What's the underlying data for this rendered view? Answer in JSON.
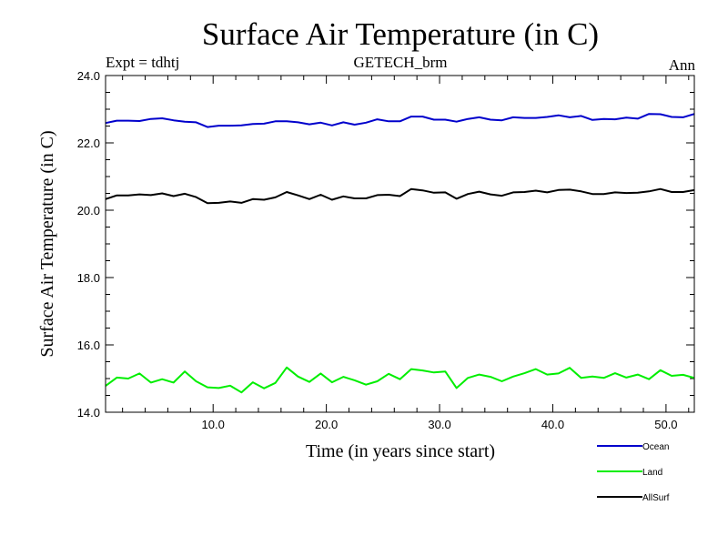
{
  "chart_data": {
    "type": "line",
    "title": "Surface Air Temperature (in C)",
    "subtitle_left": "Expt = tdhtj",
    "subtitle_center": "GETECH_brm",
    "subtitle_right": "Ann",
    "xlabel": "Time (in years since start)",
    "ylabel": "Surface Air Temperature (in C)",
    "xlim": [
      0.5,
      52.5
    ],
    "ylim": [
      14.0,
      24.0
    ],
    "x_ticks": [
      10,
      20,
      30,
      40,
      50
    ],
    "x_tick_labels": [
      "10.0",
      "20.0",
      "30.0",
      "40.0",
      "50.0"
    ],
    "y_ticks": [
      14,
      16,
      18,
      20,
      22,
      24
    ],
    "y_tick_labels": [
      "14.0",
      "16.0",
      "18.0",
      "20.0",
      "22.0",
      "24.0"
    ],
    "x": [
      0.5,
      1.5,
      2.5,
      3.5,
      4.5,
      5.5,
      6.5,
      7.5,
      8.5,
      9.5,
      10.5,
      11.5,
      12.5,
      13.5,
      14.5,
      15.5,
      16.5,
      17.5,
      18.5,
      19.5,
      20.5,
      21.5,
      22.5,
      23.5,
      24.5,
      25.5,
      26.5,
      27.5,
      28.5,
      29.5,
      30.5,
      31.5,
      32.5,
      33.5,
      34.5,
      35.5,
      36.5,
      37.5,
      38.5,
      39.5,
      40.5,
      41.5,
      42.5,
      43.5,
      44.5,
      45.5,
      46.5,
      47.5,
      48.5,
      49.5,
      50.5,
      51.5,
      52.5
    ],
    "series": [
      {
        "name": "Ocean",
        "color": "#0000cc",
        "values": [
          22.59,
          22.66,
          22.66,
          22.65,
          22.71,
          22.73,
          22.67,
          22.63,
          22.61,
          22.47,
          22.51,
          22.51,
          22.52,
          22.56,
          22.57,
          22.64,
          22.64,
          22.61,
          22.55,
          22.6,
          22.52,
          22.61,
          22.54,
          22.6,
          22.7,
          22.64,
          22.64,
          22.78,
          22.78,
          22.69,
          22.69,
          22.63,
          22.71,
          22.76,
          22.69,
          22.67,
          22.76,
          22.74,
          22.74,
          22.77,
          22.82,
          22.76,
          22.8,
          22.68,
          22.71,
          22.7,
          22.75,
          22.72,
          22.86,
          22.85,
          22.77,
          22.76,
          22.86
        ]
      },
      {
        "name": "Land",
        "color": "#00ee00",
        "values": [
          14.78,
          15.03,
          15.0,
          15.15,
          14.88,
          14.98,
          14.88,
          15.21,
          14.92,
          14.74,
          14.72,
          14.79,
          14.59,
          14.89,
          14.71,
          14.87,
          15.33,
          15.06,
          14.9,
          15.15,
          14.89,
          15.05,
          14.95,
          14.82,
          14.92,
          15.14,
          14.98,
          15.28,
          15.24,
          15.18,
          15.21,
          14.72,
          15.02,
          15.12,
          15.05,
          14.92,
          15.06,
          15.16,
          15.28,
          15.12,
          15.15,
          15.32,
          15.02,
          15.06,
          15.02,
          15.16,
          15.03,
          15.12,
          14.98,
          15.25,
          15.08,
          15.11,
          15.02
        ]
      },
      {
        "name": "AllSurf",
        "color": "#000000",
        "values": [
          20.33,
          20.44,
          20.44,
          20.47,
          20.45,
          20.5,
          20.42,
          20.49,
          20.39,
          20.21,
          20.22,
          20.26,
          20.22,
          20.33,
          20.31,
          20.38,
          20.54,
          20.44,
          20.33,
          20.46,
          20.31,
          20.41,
          20.35,
          20.35,
          20.45,
          20.46,
          20.42,
          20.63,
          20.59,
          20.52,
          20.53,
          20.34,
          20.48,
          20.55,
          20.47,
          20.43,
          20.53,
          20.54,
          20.58,
          20.53,
          20.6,
          20.61,
          20.56,
          20.48,
          20.48,
          20.53,
          20.51,
          20.52,
          20.56,
          20.63,
          20.54,
          20.54,
          20.6
        ]
      }
    ],
    "legend": [
      "Ocean",
      "Land",
      "AllSurf"
    ],
    "legend_position": "bottom-right"
  }
}
